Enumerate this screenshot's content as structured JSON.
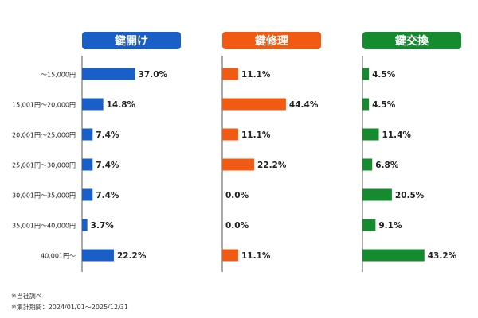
{
  "chart_data": {
    "type": "bar",
    "orientation": "horizontal",
    "categories": [
      "～15,000円",
      "15,001円～20,000円",
      "20,001円～25,000円",
      "25,001円～30,000円",
      "30,001円～35,000円",
      "35,001円～40,000円",
      "40,001円～"
    ],
    "series": [
      {
        "name": "鍵開け",
        "color": "#1a5fc8",
        "values": [
          37.0,
          14.8,
          7.4,
          7.4,
          7.4,
          3.7,
          22.2
        ]
      },
      {
        "name": "鍵修理",
        "color": "#f05a12",
        "values": [
          11.1,
          44.4,
          11.1,
          22.2,
          0.0,
          0.0,
          11.1
        ]
      },
      {
        "name": "鍵交換",
        "color": "#158a2e",
        "values": [
          4.5,
          4.5,
          11.4,
          6.8,
          20.5,
          9.1,
          43.2
        ]
      }
    ],
    "value_format": "percent_1dp",
    "xlim": [
      0,
      50
    ],
    "grid": false
  },
  "notes": {
    "source": "※当社調べ",
    "period": "※集計期間：2024/01/01～2025/12/31"
  }
}
